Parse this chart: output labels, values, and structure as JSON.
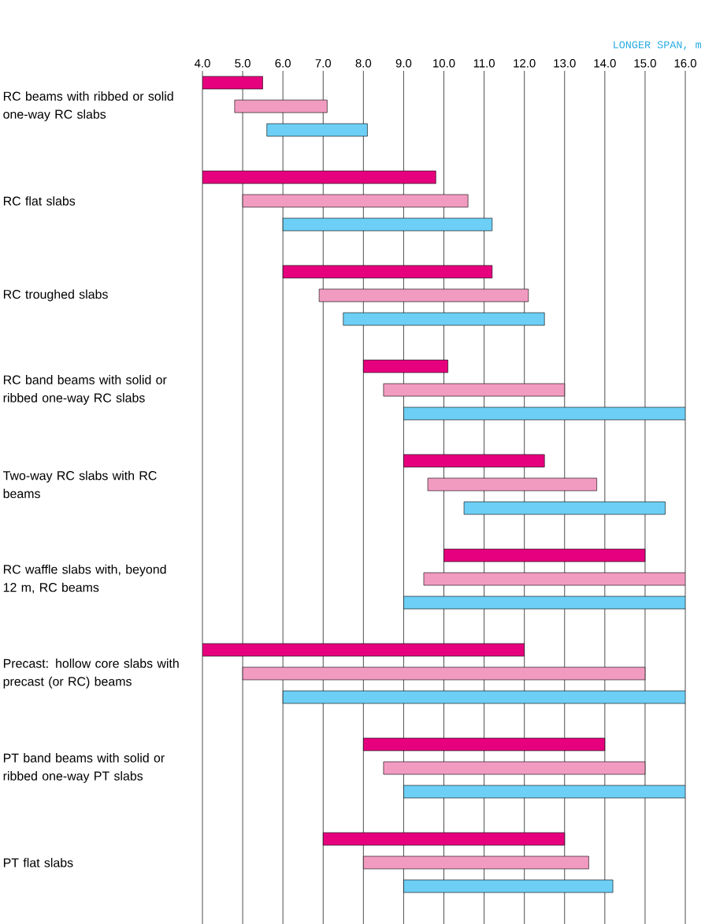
{
  "chart_data": {
    "type": "bar",
    "orientation": "horizontal",
    "xlabel": "LONGER SPAN, m",
    "categories": [
      "RC beams with ribbed or solid one-way RC slabs",
      "RC flat slabs",
      "RC troughed slabs",
      "RC band beams with solid or ribbed one-way RC slabs",
      "Two-way RC slabs with RC beams",
      "RC waffle slabs with, beyond 12 m, RC beams",
      "Precast: hollow core slabs with precast (or RC) beams",
      "PT band beams with solid or ribbed one-way PT slabs",
      "PT flat slabs"
    ],
    "series": [
      {
        "color": "#e6007e",
        "base": [
          4,
          4,
          6,
          8,
          9,
          10,
          4,
          8,
          7
        ],
        "values": [
          1.5,
          5.8,
          5.2,
          2.1,
          3.5,
          5,
          8,
          6,
          6
        ]
      },
      {
        "color": "#f29bc1",
        "base": [
          4.8,
          5,
          6.9,
          8.5,
          9.6,
          9.5,
          5,
          8.5,
          8
        ],
        "values": [
          2.3,
          5.6,
          5.2,
          4.5,
          4.2,
          6.5,
          10,
          6.5,
          5.6
        ]
      },
      {
        "color": "#6dcff6",
        "base": [
          5.6,
          6,
          7.5,
          9,
          10.5,
          9,
          6,
          9,
          9
        ],
        "values": [
          2.5,
          5.2,
          5,
          7,
          5,
          7,
          10,
          7,
          5.2
        ]
      }
    ],
    "xlim": [
      4,
      16
    ],
    "xticks": [
      {
        "value": 4,
        "label": "4.0"
      },
      {
        "value": 5,
        "label": "5.0"
      },
      {
        "value": 6,
        "label": "6.0"
      },
      {
        "value": 7,
        "label": "7.0"
      },
      {
        "value": 8,
        "label": "8.0"
      },
      {
        "value": 9,
        "label": "9.0"
      },
      {
        "value": 10,
        "label": "10.0"
      },
      {
        "value": 11,
        "label": "11.0"
      },
      {
        "value": 12,
        "label": "12.0"
      },
      {
        "value": 13,
        "label": "13.0"
      },
      {
        "value": 14,
        "label": "14.0"
      },
      {
        "value": 15,
        "label": "15.0"
      },
      {
        "value": 16,
        "label": "16.0"
      }
    ],
    "grid": "x"
  }
}
